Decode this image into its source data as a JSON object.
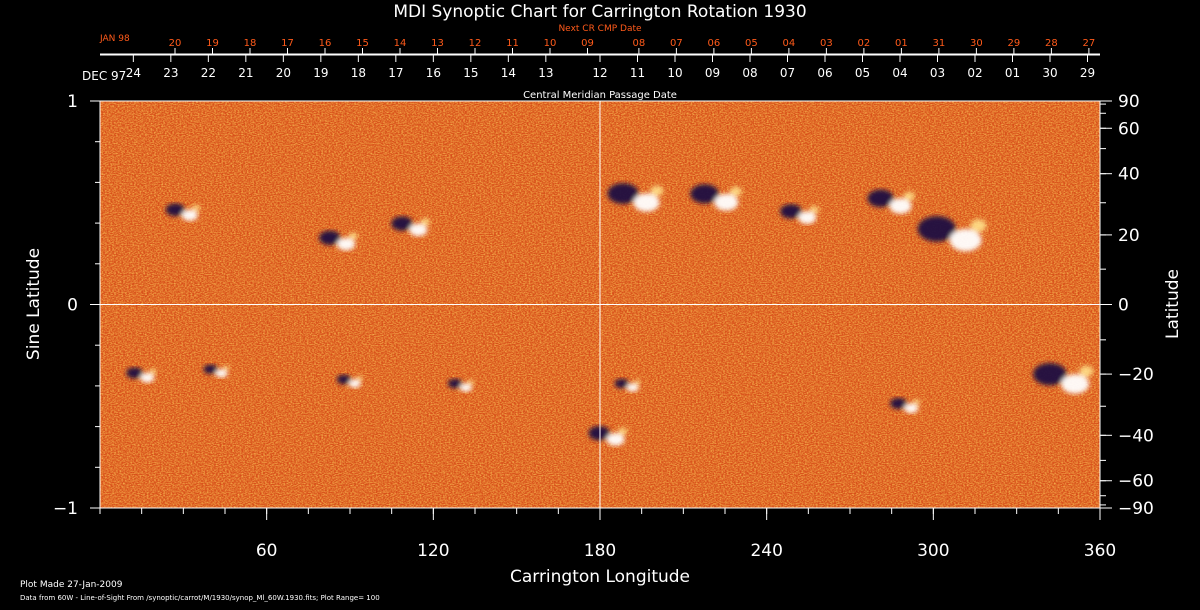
{
  "chart_data": {
    "type": "heatmap",
    "title": "MDI Synoptic Chart for Carrington Rotation 1930",
    "xlabel": "Carrington Longitude",
    "ylabel_left": "Sine Latitude",
    "ylabel_right": "Latitude",
    "xlim": [
      0,
      360
    ],
    "ylim": [
      -1,
      1
    ],
    "x_ticks": [
      60,
      120,
      180,
      240,
      300,
      360
    ],
    "y_left_ticks": [
      {
        "value": 1,
        "label": "1"
      },
      {
        "value": 0,
        "label": "0"
      },
      {
        "value": -1,
        "label": "−1"
      }
    ],
    "y_right_ticks": [
      90,
      60,
      40,
      20,
      0,
      -20,
      -40,
      -60,
      -90
    ],
    "top_axis": {
      "label": "Central Meridian Passage Date",
      "start_label": "DEC 97",
      "dates": [
        "24",
        "23",
        "22",
        "21",
        "20",
        "19",
        "18",
        "17",
        "16",
        "15",
        "14",
        "13",
        "12",
        "11",
        "10",
        "09",
        "08",
        "07",
        "06",
        "05",
        "04",
        "03",
        "02",
        "01",
        "30",
        "29"
      ],
      "date_longitudes": [
        12,
        25.5,
        39,
        52.5,
        66,
        79.5,
        93,
        106.5,
        120,
        133.5,
        147,
        160.5,
        180,
        193.5,
        207,
        220.5,
        234,
        247.5,
        261,
        274.5,
        288,
        301.5,
        315,
        328.5,
        342,
        355.5
      ]
    },
    "next_cr_axis": {
      "label": "Next CR CMP Date",
      "start_label": "JAN 98",
      "dates": [
        "20",
        "19",
        "18",
        "17",
        "16",
        "15",
        "14",
        "13",
        "12",
        "11",
        "10",
        "09",
        "08",
        "07",
        "06",
        "05",
        "04",
        "03",
        "02",
        "01",
        "31",
        "30",
        "29",
        "28",
        "27"
      ],
      "date_longitudes": [
        27,
        40.5,
        54,
        67.5,
        81,
        94.5,
        108,
        121.5,
        135,
        148.5,
        162,
        175.5,
        194,
        207.5,
        221,
        234.5,
        248,
        261.5,
        275,
        288.5,
        302,
        315.5,
        329,
        342.5,
        356
      ]
    },
    "colors": {
      "background_field": "#d8501a",
      "positive_polarity": "#ffffff",
      "negative_polarity": "#1a1040",
      "grid": "#ffffff",
      "top_axis_text": "#ffffff",
      "next_cr_text": "#ff5a1a"
    },
    "grid": true,
    "active_regions": [
      {
        "lon": 30,
        "sinlat": 0.45,
        "flux": 0.8
      },
      {
        "lon": 86,
        "sinlat": 0.31,
        "flux": 0.9
      },
      {
        "lon": 112,
        "sinlat": 0.38,
        "flux": 0.9
      },
      {
        "lon": 193,
        "sinlat": 0.52,
        "flux": 1.3
      },
      {
        "lon": 222,
        "sinlat": 0.52,
        "flux": 1.2
      },
      {
        "lon": 252,
        "sinlat": 0.44,
        "flux": 0.9
      },
      {
        "lon": 285,
        "sinlat": 0.5,
        "flux": 1.1
      },
      {
        "lon": 307,
        "sinlat": 0.34,
        "flux": 1.6
      },
      {
        "lon": 15,
        "sinlat": -0.35,
        "flux": 0.7
      },
      {
        "lon": 42,
        "sinlat": -0.33,
        "flux": 0.6
      },
      {
        "lon": 90,
        "sinlat": -0.38,
        "flux": 0.6
      },
      {
        "lon": 130,
        "sinlat": -0.4,
        "flux": 0.6
      },
      {
        "lon": 183,
        "sinlat": -0.65,
        "flux": 0.9
      },
      {
        "lon": 190,
        "sinlat": -0.4,
        "flux": 0.6
      },
      {
        "lon": 290,
        "sinlat": -0.5,
        "flux": 0.7
      },
      {
        "lon": 347,
        "sinlat": -0.37,
        "flux": 1.4
      }
    ]
  },
  "footer": {
    "plot_made": "Plot Made 27-Jan-2009",
    "data_source": "Data from 60W - Line-of-Sight From /synoptic/carrot/M/1930/synop_Ml_60W.1930.fits; Plot Range= 100"
  }
}
